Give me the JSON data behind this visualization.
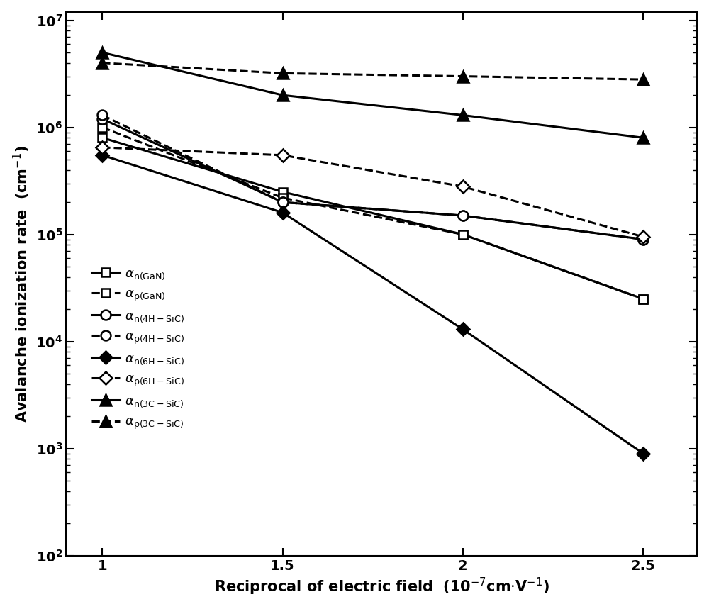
{
  "x": [
    1.0,
    1.5,
    2.0,
    2.5
  ],
  "series": [
    {
      "name": "alpha_n_GaN",
      "label_sub": "n(GaN)",
      "y": [
        800000.0,
        250000.0,
        100000.0,
        25000.0
      ],
      "linestyle": "solid",
      "marker": "s",
      "filled": false,
      "markersize": 9
    },
    {
      "name": "alpha_p_GaN",
      "label_sub": "p(GaN)",
      "y": [
        1000000.0,
        220000.0,
        100000.0,
        25000.0
      ],
      "linestyle": "dashed",
      "marker": "s",
      "filled": false,
      "markersize": 9
    },
    {
      "name": "alpha_n_4HSiC",
      "label_sub": "n(4H-SiC)",
      "y": [
        1200000.0,
        200000.0,
        150000.0,
        90000.0
      ],
      "linestyle": "solid",
      "marker": "o",
      "filled": false,
      "markersize": 10
    },
    {
      "name": "alpha_p_4HSiC",
      "label_sub": "p(4H-SiC)",
      "y": [
        1300000.0,
        200000.0,
        150000.0,
        90000.0
      ],
      "linestyle": "dashed",
      "marker": "o",
      "filled": false,
      "markersize": 10
    },
    {
      "name": "alpha_n_6HSiC",
      "label_sub": "n(6H-SiC)",
      "y": [
        550000.0,
        160000.0,
        13000.0,
        900.0
      ],
      "linestyle": "solid",
      "marker": "D",
      "filled": true,
      "markersize": 9
    },
    {
      "name": "alpha_p_6HSiC",
      "label_sub": "p(6H-SiC)",
      "y": [
        650000.0,
        550000.0,
        280000.0,
        95000.0
      ],
      "linestyle": "dashed",
      "marker": "D",
      "filled": false,
      "markersize": 9
    },
    {
      "name": "alpha_n_3CSiC",
      "label_sub": "n(3C-SiC)",
      "y": [
        5000000.0,
        2000000.0,
        1300000.0,
        800000.0
      ],
      "linestyle": "solid",
      "marker": "^",
      "filled": true,
      "markersize": 11
    },
    {
      "name": "alpha_p_3CSiC",
      "label_sub": "p(3C-SiC)",
      "y": [
        4000000.0,
        3200000.0,
        3000000.0,
        2800000.0
      ],
      "linestyle": "dashed",
      "marker": "^",
      "filled": true,
      "markersize": 11
    }
  ],
  "xlim": [
    0.9,
    2.65
  ],
  "ylim": [
    100.0,
    12000000.0
  ],
  "xticks": [
    1.0,
    1.5,
    2.0,
    2.5
  ],
  "xlabel": "Reciprocal of electric field  (10$^{-7}$cm$\\cdot$V$^{-1}$)",
  "ylabel": "Avalanche ionization rate  (cm$^{-1}$)",
  "color": "#000000",
  "linewidth": 2.2,
  "tick_fontsize": 14,
  "label_fontsize": 15,
  "legend_fontsize": 13
}
